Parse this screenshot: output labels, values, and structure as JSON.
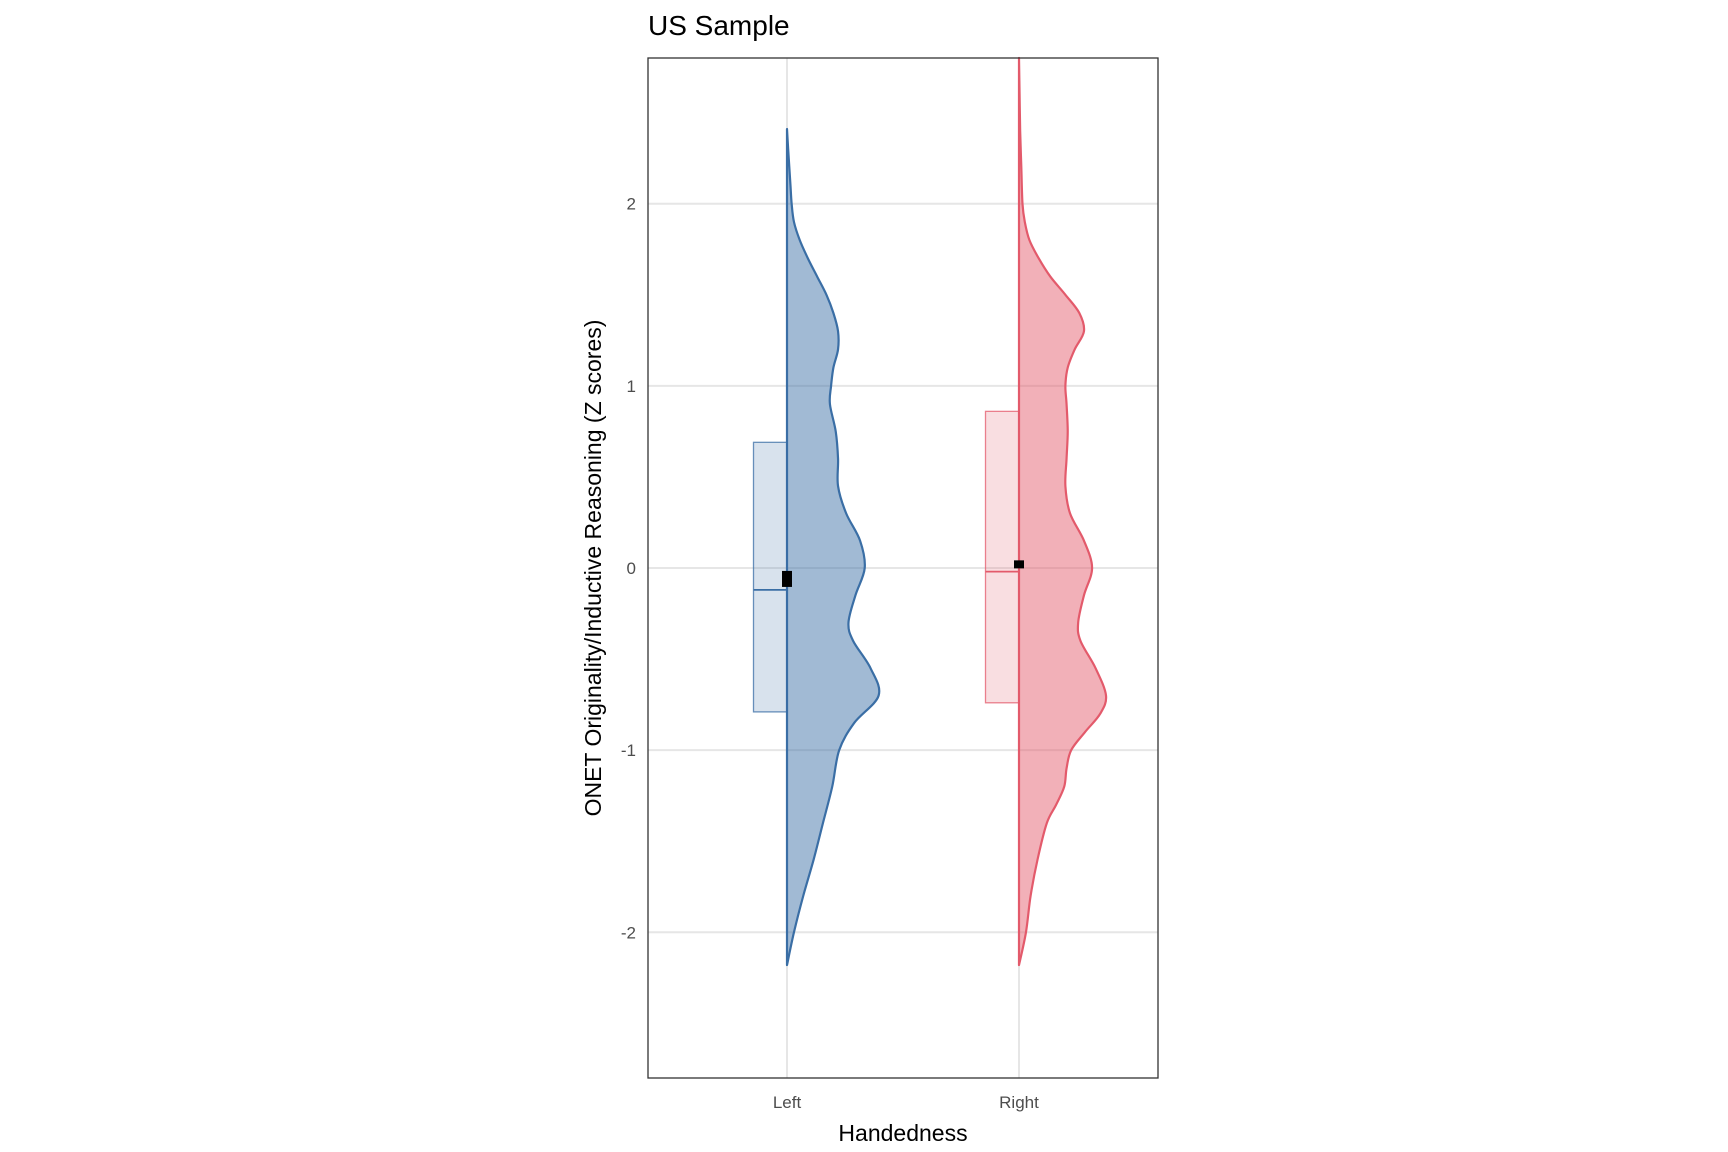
{
  "chart_data": {
    "type": "raincloud",
    "title": "US Sample",
    "xlabel": "Handedness",
    "ylabel": "ONET Originality/Inductive Reasoning (Z scores)",
    "categories": [
      "Left",
      "Right"
    ],
    "ylim": [
      -2.8,
      2.8
    ],
    "yticks": [
      -2,
      -1,
      0,
      1,
      2
    ],
    "yticklabels": [
      "-2",
      "-1",
      "0",
      "1",
      "2"
    ],
    "grid": true,
    "legend": "none",
    "series": [
      {
        "category": "Left",
        "color": "#3a6ea5",
        "box": {
          "q1": -0.79,
          "median": -0.12,
          "q3": 0.69
        },
        "mean": -0.06,
        "density": {
          "y": [
            -2.18,
            -2.0,
            -1.8,
            -1.6,
            -1.4,
            -1.2,
            -1.0,
            -0.85,
            -0.7,
            -0.55,
            -0.4,
            -0.3,
            -0.15,
            0.0,
            0.15,
            0.3,
            0.45,
            0.6,
            0.75,
            0.9,
            1.0,
            1.1,
            1.2,
            1.3,
            1.4,
            1.5,
            1.6,
            1.7,
            1.8,
            1.9,
            2.0,
            2.1,
            2.2,
            2.3,
            2.41
          ],
          "width": [
            0.0,
            0.06,
            0.14,
            0.23,
            0.31,
            0.39,
            0.45,
            0.58,
            0.79,
            0.72,
            0.57,
            0.53,
            0.59,
            0.67,
            0.63,
            0.51,
            0.44,
            0.44,
            0.42,
            0.37,
            0.38,
            0.4,
            0.44,
            0.44,
            0.4,
            0.34,
            0.26,
            0.18,
            0.11,
            0.06,
            0.04,
            0.03,
            0.02,
            0.01,
            0.0
          ]
        }
      },
      {
        "category": "Right",
        "color": "#e35a6b",
        "box": {
          "q1": -0.74,
          "median": -0.02,
          "q3": 0.86
        },
        "mean": 0.02,
        "density": {
          "y": [
            -2.18,
            -2.0,
            -1.8,
            -1.6,
            -1.4,
            -1.3,
            -1.2,
            -1.1,
            -1.0,
            -0.9,
            -0.8,
            -0.7,
            -0.55,
            -0.4,
            -0.3,
            -0.15,
            0.0,
            0.15,
            0.3,
            0.45,
            0.6,
            0.75,
            0.9,
            1.0,
            1.1,
            1.2,
            1.3,
            1.4,
            1.5,
            1.6,
            1.7,
            1.8,
            1.9,
            2.0,
            2.2,
            2.4,
            2.6,
            2.8
          ],
          "width": [
            0.0,
            0.06,
            0.1,
            0.16,
            0.24,
            0.32,
            0.39,
            0.41,
            0.45,
            0.57,
            0.7,
            0.75,
            0.66,
            0.53,
            0.51,
            0.56,
            0.63,
            0.56,
            0.44,
            0.4,
            0.41,
            0.42,
            0.41,
            0.4,
            0.42,
            0.48,
            0.56,
            0.52,
            0.4,
            0.27,
            0.17,
            0.09,
            0.05,
            0.03,
            0.02,
            0.01,
            0.005,
            0.0
          ]
        }
      }
    ]
  }
}
